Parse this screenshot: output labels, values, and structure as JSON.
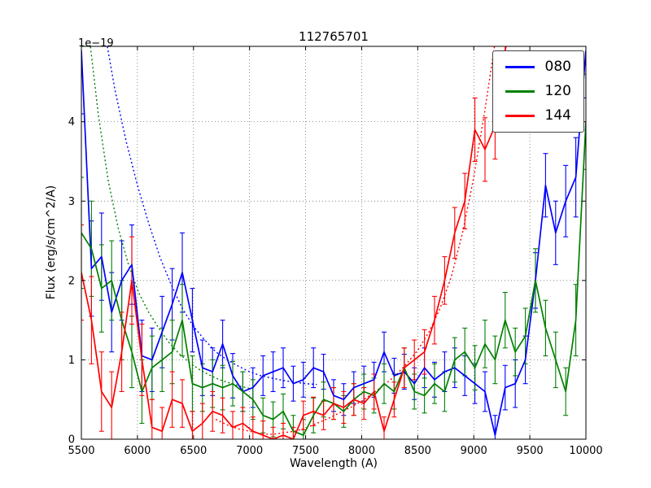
{
  "title": "112765701",
  "axes": {
    "xlabel": "Wavelength (A)",
    "ylabel": "Flux (erg/s/cm^2/A)",
    "offset_text": "1e−19",
    "xtick_labels": [
      "5500",
      "6000",
      "6500",
      "7000",
      "7500",
      "8000",
      "8500",
      "9000",
      "9500",
      "10000"
    ],
    "ytick_labels": [
      "0",
      "1",
      "2",
      "3",
      "4"
    ]
  },
  "legend": {
    "entries": [
      {
        "label": "080",
        "color": "#0000ff"
      },
      {
        "label": "120",
        "color": "#008000"
      },
      {
        "label": "144",
        "color": "#ff0000"
      }
    ]
  },
  "chart_data": {
    "type": "line",
    "title": "112765701",
    "xlabel": "Wavelength (A)",
    "ylabel": "Flux (erg/s/cm^2/A)",
    "y_scale_factor": "1e-19",
    "xlim": [
      5500,
      10000
    ],
    "ylim": [
      0,
      4.95
    ],
    "xticks": [
      5500,
      6000,
      6500,
      7000,
      7500,
      8000,
      8500,
      9000,
      9500,
      10000
    ],
    "yticks": [
      0,
      1,
      2,
      3,
      4
    ],
    "grid": true,
    "legend_position": "upper right",
    "x": [
      5500,
      5590,
      5680,
      5770,
      5860,
      5950,
      6040,
      6130,
      6220,
      6310,
      6400,
      6490,
      6580,
      6670,
      6760,
      6850,
      6940,
      7030,
      7120,
      7210,
      7300,
      7390,
      7480,
      7570,
      7660,
      7750,
      7840,
      7930,
      8020,
      8110,
      8200,
      8290,
      8380,
      8470,
      8560,
      8650,
      8740,
      8830,
      8920,
      9010,
      9100,
      9190,
      9280,
      9370,
      9460,
      9550,
      9640,
      9730,
      9820,
      9910,
      10000
    ],
    "series": [
      {
        "name": "080",
        "color": "#0000ff",
        "values": [
          4.9,
          2.15,
          2.3,
          1.6,
          2.0,
          2.2,
          1.05,
          1.0,
          1.35,
          1.7,
          2.1,
          1.5,
          0.9,
          0.85,
          1.2,
          0.8,
          0.6,
          0.65,
          0.8,
          0.85,
          0.9,
          0.7,
          0.75,
          0.9,
          0.85,
          0.55,
          0.5,
          0.65,
          0.7,
          0.75,
          1.1,
          0.8,
          0.85,
          0.7,
          0.9,
          0.75,
          0.85,
          0.9,
          0.8,
          0.7,
          0.6,
          0.05,
          0.65,
          0.7,
          1.0,
          2.0,
          3.2,
          2.6,
          3.0,
          3.3,
          4.9
        ],
        "errors": [
          0.8,
          0.6,
          0.55,
          0.5,
          0.5,
          0.5,
          0.45,
          0.4,
          0.45,
          0.45,
          0.5,
          0.4,
          0.35,
          0.3,
          0.3,
          0.28,
          0.25,
          0.25,
          0.25,
          0.25,
          0.25,
          0.22,
          0.22,
          0.25,
          0.22,
          0.2,
          0.2,
          0.2,
          0.22,
          0.22,
          0.25,
          0.22,
          0.22,
          0.2,
          0.25,
          0.22,
          0.25,
          0.25,
          0.25,
          0.25,
          0.25,
          0.25,
          0.28,
          0.3,
          0.3,
          0.35,
          0.4,
          0.4,
          0.45,
          0.5,
          0.6
        ]
      },
      {
        "name": "120",
        "color": "#008000",
        "values": [
          2.6,
          2.4,
          1.9,
          2.0,
          1.5,
          1.1,
          0.6,
          0.9,
          1.0,
          1.1,
          1.5,
          0.7,
          0.65,
          0.7,
          0.65,
          0.7,
          0.6,
          0.5,
          0.3,
          0.25,
          0.35,
          0.1,
          0.05,
          0.3,
          0.5,
          0.45,
          0.35,
          0.5,
          0.6,
          0.55,
          0.7,
          0.6,
          0.9,
          0.6,
          0.55,
          0.7,
          0.6,
          1.0,
          1.1,
          0.9,
          1.2,
          1.0,
          1.5,
          1.1,
          1.3,
          2.0,
          1.4,
          1.0,
          0.6,
          1.5,
          4.0
        ],
        "errors": [
          0.7,
          0.6,
          0.55,
          0.5,
          0.5,
          0.45,
          0.4,
          0.4,
          0.4,
          0.4,
          0.45,
          0.35,
          0.3,
          0.3,
          0.28,
          0.28,
          0.25,
          0.25,
          0.22,
          0.22,
          0.22,
          0.2,
          0.2,
          0.22,
          0.22,
          0.2,
          0.2,
          0.2,
          0.22,
          0.22,
          0.25,
          0.22,
          0.25,
          0.22,
          0.22,
          0.25,
          0.25,
          0.28,
          0.3,
          0.28,
          0.3,
          0.3,
          0.35,
          0.3,
          0.35,
          0.4,
          0.35,
          0.35,
          0.3,
          0.45,
          0.6
        ]
      },
      {
        "name": "144",
        "color": "#ff0000",
        "values": [
          2.1,
          1.5,
          0.6,
          0.4,
          1.1,
          2.0,
          1.0,
          0.15,
          0.1,
          0.5,
          0.45,
          0.1,
          0.2,
          0.35,
          0.3,
          0.15,
          0.2,
          0.1,
          0.05,
          0.0,
          0.05,
          0.0,
          0.3,
          0.35,
          0.3,
          0.45,
          0.4,
          0.5,
          0.45,
          0.6,
          0.1,
          0.5,
          0.9,
          1.0,
          1.1,
          1.5,
          2.0,
          2.6,
          3.0,
          3.9,
          3.65,
          3.95,
          4.9,
          5.5,
          5.5,
          5.5,
          5.5,
          5.5,
          5.5,
          5.5,
          5.5
        ],
        "errors": [
          0.6,
          0.55,
          0.5,
          0.45,
          0.5,
          0.55,
          0.45,
          0.35,
          0.3,
          0.35,
          0.3,
          0.25,
          0.25,
          0.25,
          0.22,
          0.2,
          0.2,
          0.18,
          0.18,
          0.15,
          0.15,
          0.15,
          0.18,
          0.18,
          0.18,
          0.2,
          0.2,
          0.2,
          0.2,
          0.22,
          0.18,
          0.22,
          0.25,
          0.25,
          0.28,
          0.3,
          0.3,
          0.32,
          0.35,
          0.4,
          0.4,
          0.42,
          0.45,
          0.4,
          0.4,
          0.4,
          0.4,
          0.4,
          0.4,
          0.4,
          0.4
        ]
      }
    ],
    "model_curves": [
      {
        "name": "080-model",
        "color": "#0000ff",
        "x": [
          5700,
          5800,
          5900,
          6000,
          6100,
          6200,
          6300,
          6400,
          6500,
          6600,
          6700,
          6800,
          6900,
          7000,
          7100,
          7200,
          7300,
          7400,
          7500,
          7600
        ],
        "values": [
          5.2,
          4.4,
          3.75,
          3.2,
          2.72,
          2.3,
          1.95,
          1.65,
          1.42,
          1.25,
          1.1,
          1.0,
          0.92,
          0.85,
          0.8,
          0.77,
          0.74,
          0.72,
          0.7,
          0.69
        ]
      },
      {
        "name": "120-model",
        "color": "#008000",
        "x": [
          5560,
          5650,
          5740,
          5830,
          5920,
          6010,
          6100,
          6190,
          6280,
          6370,
          6460,
          6550,
          6640,
          6730,
          6820,
          6910,
          7000
        ],
        "values": [
          5.2,
          4.1,
          3.25,
          2.65,
          2.2,
          1.85,
          1.6,
          1.4,
          1.22,
          1.08,
          0.97,
          0.88,
          0.81,
          0.75,
          0.71,
          0.67,
          0.64
        ]
      },
      {
        "name": "144-model",
        "color": "#ff0000",
        "x": [
          6700,
          6800,
          6900,
          7000,
          7100,
          7200,
          7300,
          7400,
          7500,
          7600,
          7700,
          7800,
          7900,
          8000,
          8100,
          8200,
          8300,
          8400,
          8500,
          8600,
          8700,
          8800,
          8900,
          9000,
          9100,
          9200
        ],
        "values": [
          0.25,
          0.18,
          0.13,
          0.1,
          0.07,
          0.06,
          0.08,
          0.1,
          0.14,
          0.2,
          0.26,
          0.33,
          0.4,
          0.48,
          0.58,
          0.68,
          0.8,
          0.95,
          1.12,
          1.35,
          1.65,
          2.05,
          2.6,
          3.3,
          4.15,
          5.1
        ]
      }
    ]
  }
}
